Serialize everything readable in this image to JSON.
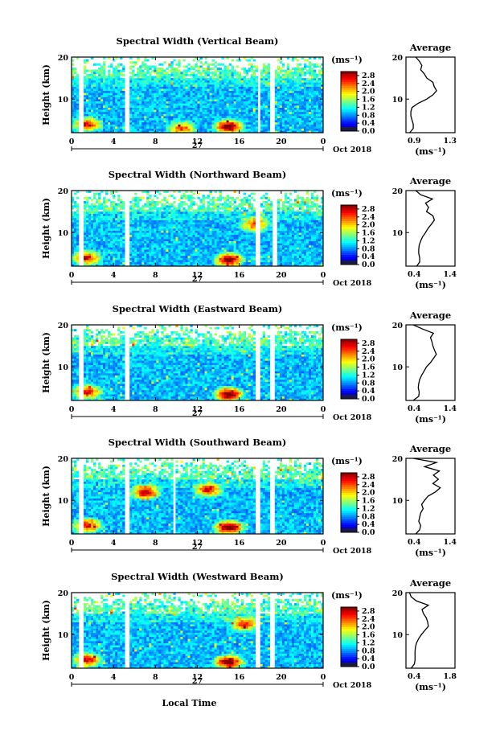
{
  "figure": {
    "time_axis_ticks": [
      "0",
      "4",
      "8",
      "12",
      "16",
      "20",
      "0"
    ],
    "day_label": "27",
    "date_label": "Oct 2018",
    "xlabel": "Local Time",
    "ylabel": "Height (km)",
    "height_ticks": [
      "20",
      "10"
    ],
    "colorbar_unit": "(ms⁻¹)",
    "colorbar_ticks": [
      "2.8",
      "2.4",
      "2.0",
      "1.6",
      "1.2",
      "0.8",
      "0.4",
      "0.0"
    ],
    "average_title": "Average",
    "average_xlabel": "(ms⁻¹)"
  },
  "chart_data": [
    {
      "type": "heatmap",
      "title": "Spectral Width (Vertical Beam)",
      "xlabel": "Local Time",
      "ylabel": "Height (km)",
      "xlim": [
        0,
        24
      ],
      "ylim": [
        2,
        20
      ],
      "x_ticks": [
        0,
        4,
        8,
        12,
        16,
        20,
        24
      ],
      "colorbar": {
        "unit": "ms-1",
        "range": [
          0.0,
          3.0
        ]
      },
      "data_gaps_hours": [
        [
          0.7,
          1.1
        ],
        [
          5.1,
          5.6
        ],
        [
          17.7,
          18.1
        ],
        [
          18.9,
          19.3
        ]
      ],
      "hotspots": [
        {
          "time": 15.0,
          "height": 3.5,
          "width": 2.6
        },
        {
          "time": 1.5,
          "height": 4.0,
          "width": 2.0
        },
        {
          "time": 10.5,
          "height": 3.0,
          "width": 1.8
        }
      ],
      "average_profile": {
        "xlim": [
          0.9,
          1.3
        ],
        "x_ticks": [
          "0.9",
          "1.3"
        ],
        "height": [
          2,
          3,
          4,
          5,
          6,
          7,
          8,
          9,
          10,
          11,
          12,
          13,
          14,
          15,
          16,
          17,
          18,
          19,
          20
        ],
        "width": [
          0.93,
          0.96,
          0.96,
          0.95,
          0.94,
          0.94,
          0.95,
          1.0,
          1.07,
          1.12,
          1.15,
          1.13,
          1.12,
          1.07,
          1.05,
          1.02,
          1.03,
          1.01,
          0.98
        ]
      }
    },
    {
      "type": "heatmap",
      "title": "Spectral Width (Northward Beam)",
      "xlabel": "Local Time",
      "ylabel": "Height (km)",
      "xlim": [
        0,
        24
      ],
      "ylim": [
        2,
        20
      ],
      "x_ticks": [
        0,
        4,
        8,
        12,
        16,
        20,
        24
      ],
      "colorbar": {
        "unit": "ms-1",
        "range": [
          0.0,
          3.0
        ]
      },
      "data_gaps_hours": [
        [
          0.7,
          1.1
        ],
        [
          5.1,
          5.6
        ],
        [
          17.6,
          18.1
        ],
        [
          19.2,
          19.6
        ]
      ],
      "hotspots": [
        {
          "time": 15.0,
          "height": 3.5,
          "width": 2.5
        },
        {
          "time": 1.5,
          "height": 4.0,
          "width": 2.0
        },
        {
          "time": 17.5,
          "height": 12.0,
          "width": 1.8
        }
      ],
      "average_profile": {
        "xlim": [
          0.4,
          1.4
        ],
        "x_ticks": [
          "0.4",
          "1.4"
        ],
        "height": [
          2,
          3,
          4,
          5,
          6,
          7,
          8,
          9,
          10,
          11,
          12,
          13,
          14,
          15,
          16,
          17,
          18,
          19,
          20
        ],
        "width": [
          0.62,
          0.68,
          0.68,
          0.66,
          0.66,
          0.67,
          0.7,
          0.74,
          0.8,
          0.85,
          0.92,
          0.98,
          0.95,
          0.82,
          0.86,
          0.8,
          0.94,
          0.7,
          0.6
        ]
      }
    },
    {
      "type": "heatmap",
      "title": "Spectral Width (Eastward Beam)",
      "xlabel": "Local Time",
      "ylabel": "Height (km)",
      "xlim": [
        0,
        24
      ],
      "ylim": [
        2,
        20
      ],
      "x_ticks": [
        0,
        4,
        8,
        12,
        16,
        20,
        24
      ],
      "colorbar": {
        "unit": "ms-1",
        "range": [
          0.0,
          3.0
        ]
      },
      "data_gaps_hours": [
        [
          0.7,
          1.1
        ],
        [
          5.1,
          5.6
        ],
        [
          17.6,
          18.1
        ],
        [
          18.9,
          19.3
        ]
      ],
      "hotspots": [
        {
          "time": 15.0,
          "height": 3.5,
          "width": 2.6
        },
        {
          "time": 1.5,
          "height": 4.0,
          "width": 2.0
        }
      ],
      "average_profile": {
        "xlim": [
          0.4,
          1.4
        ],
        "x_ticks": [
          "0.4",
          "1.4"
        ],
        "height": [
          2,
          3,
          4,
          5,
          6,
          7,
          8,
          9,
          10,
          11,
          12,
          13,
          14,
          15,
          16,
          17,
          18,
          19,
          20
        ],
        "width": [
          0.55,
          0.66,
          0.67,
          0.65,
          0.66,
          0.68,
          0.72,
          0.77,
          0.82,
          0.9,
          0.96,
          1.02,
          0.98,
          0.95,
          0.93,
          0.9,
          0.96,
          0.74,
          0.55
        ]
      }
    },
    {
      "type": "heatmap",
      "title": "Spectral Width (Southward Beam)",
      "xlabel": "Local Time",
      "ylabel": "Height (km)",
      "xlim": [
        0,
        24
      ],
      "ylim": [
        2,
        20
      ],
      "x_ticks": [
        0,
        4,
        8,
        12,
        16,
        20,
        24
      ],
      "colorbar": {
        "unit": "ms-1",
        "range": [
          0.0,
          3.0
        ]
      },
      "data_gaps_hours": [
        [
          0.7,
          1.1
        ],
        [
          5.1,
          5.6
        ],
        [
          9.6,
          10.0
        ],
        [
          17.6,
          18.1
        ],
        [
          18.9,
          19.3
        ]
      ],
      "hotspots": [
        {
          "time": 15.0,
          "height": 3.5,
          "width": 2.6
        },
        {
          "time": 1.5,
          "height": 4.0,
          "width": 2.0
        },
        {
          "time": 7.0,
          "height": 12.0,
          "width": 2.2
        },
        {
          "time": 13.0,
          "height": 12.5,
          "width": 2.0
        }
      ],
      "average_profile": {
        "xlim": [
          0.4,
          1.4
        ],
        "x_ticks": [
          "0.4",
          "1.4"
        ],
        "height": [
          2,
          3,
          4,
          5,
          6,
          7,
          8,
          9,
          10,
          11,
          12,
          13,
          14,
          15,
          16,
          17,
          18,
          19,
          20
        ],
        "width": [
          0.6,
          0.68,
          0.7,
          0.66,
          0.68,
          0.7,
          0.75,
          0.72,
          0.78,
          0.85,
          1.0,
          1.1,
          0.95,
          1.06,
          0.96,
          1.08,
          0.78,
          1.02,
          0.55
        ]
      }
    },
    {
      "type": "heatmap",
      "title": "Spectral Width (Westward Beam)",
      "xlabel": "Local Time",
      "ylabel": "Height (km)",
      "xlim": [
        0,
        24
      ],
      "ylim": [
        2,
        20
      ],
      "x_ticks": [
        0,
        4,
        8,
        12,
        16,
        20,
        24
      ],
      "colorbar": {
        "unit": "ms-1",
        "range": [
          0.0,
          3.0
        ]
      },
      "data_gaps_hours": [
        [
          0.7,
          1.1
        ],
        [
          5.1,
          5.6
        ],
        [
          17.6,
          18.1
        ],
        [
          18.9,
          19.3
        ]
      ],
      "hotspots": [
        {
          "time": 15.0,
          "height": 3.5,
          "width": 2.6
        },
        {
          "time": 1.5,
          "height": 4.0,
          "width": 2.0
        },
        {
          "time": 16.5,
          "height": 12.5,
          "width": 1.8
        }
      ],
      "average_profile": {
        "xlim": [
          0.4,
          1.8
        ],
        "x_ticks": [
          "0.4",
          "1.8"
        ],
        "height": [
          2,
          3,
          4,
          5,
          6,
          7,
          8,
          9,
          10,
          11,
          12,
          13,
          14,
          15,
          16,
          17,
          18,
          19,
          20
        ],
        "width": [
          0.55,
          0.64,
          0.66,
          0.66,
          0.66,
          0.67,
          0.7,
          0.76,
          0.84,
          0.94,
          1.04,
          1.02,
          0.98,
          0.9,
          0.86,
          1.04,
          0.7,
          0.55,
          0.5
        ]
      }
    }
  ]
}
